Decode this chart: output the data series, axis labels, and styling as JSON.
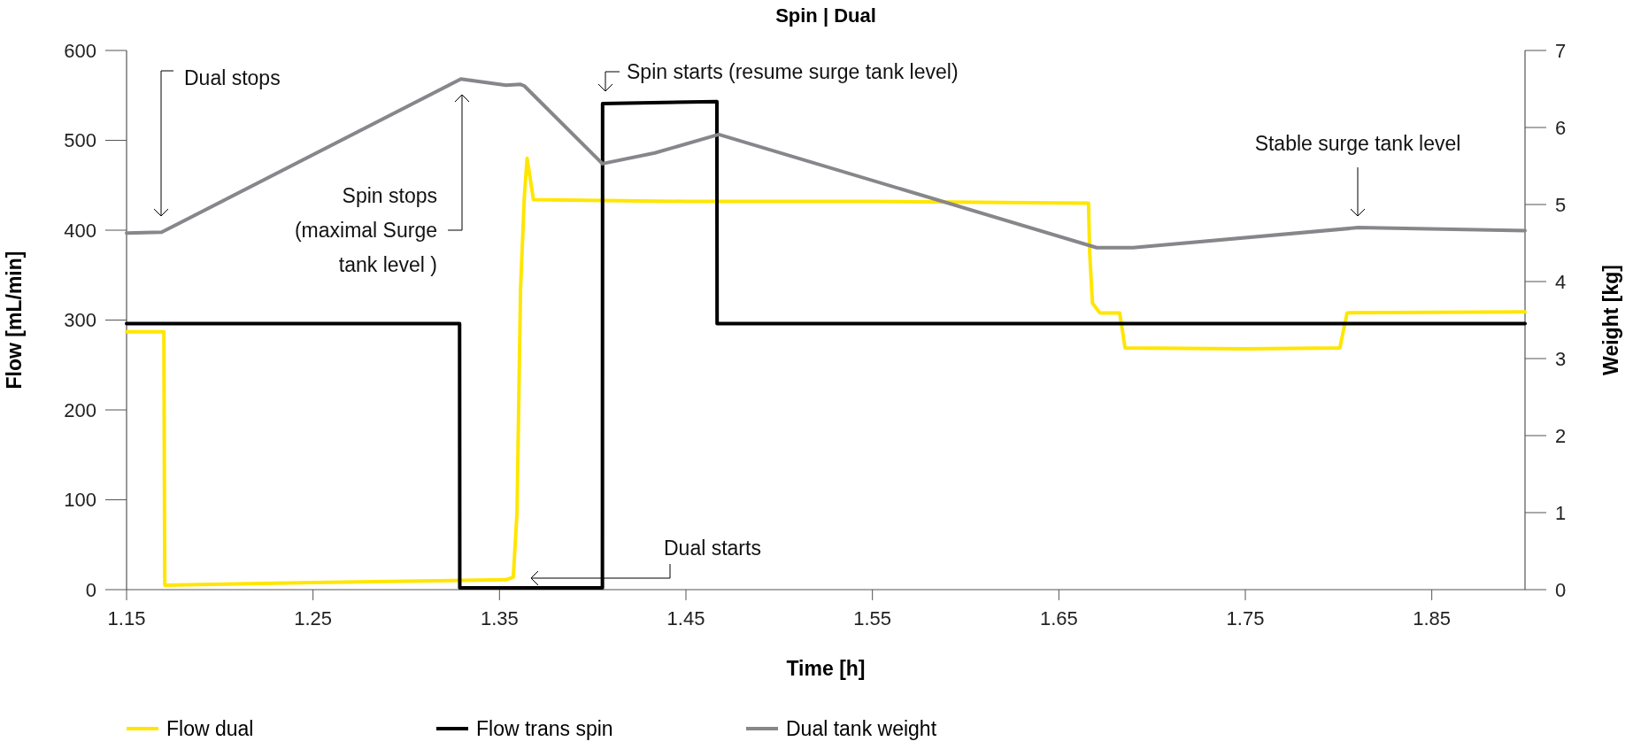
{
  "chart_data": {
    "type": "line",
    "title": "Spin | Dual",
    "xlabel": "Time [h]",
    "ylabel": "Flow [mL/min]",
    "y2label": "Weight [kg]",
    "xlim": [
      1.15,
      1.9
    ],
    "xticks": [
      1.15,
      1.25,
      1.35,
      1.45,
      1.55,
      1.65,
      1.75,
      1.85
    ],
    "ylim": [
      0,
      600
    ],
    "yticks": [
      0,
      100,
      200,
      300,
      400,
      500,
      600
    ],
    "y2lim": [
      0,
      7
    ],
    "y2ticks": [
      0,
      1,
      2,
      3,
      4,
      5,
      6,
      7
    ],
    "grid": false,
    "legend": "bottom",
    "line_style": "solid",
    "marker": "none",
    "series": [
      {
        "name": "Flow dual",
        "color": "#ffe600",
        "x": [
          1.15,
          1.17,
          1.1705,
          1.25,
          1.3535,
          1.3574,
          1.3594,
          1.3613,
          1.3633,
          1.3648,
          1.3682,
          1.45,
          1.55,
          1.6659,
          1.6665,
          1.668,
          1.6719,
          1.6826,
          1.6855,
          1.75,
          1.8007,
          1.8046,
          1.9
        ],
        "values": [
          287,
          287,
          5,
          8,
          11,
          14,
          86,
          335,
          436,
          480,
          434,
          432,
          432,
          430,
          376,
          319,
          308,
          308,
          269,
          268,
          269,
          308,
          309
        ]
      },
      {
        "name": "Flow trans spin",
        "color": "#000000",
        "x": [
          1.15,
          1.3286,
          1.3287,
          1.4052,
          1.4053,
          1.4666,
          1.4667,
          1.9
        ],
        "values": [
          296,
          296,
          2,
          2,
          541,
          543,
          296,
          296
        ]
      },
      {
        "name": "Dual tank weight",
        "color": "#87868a",
        "axis": "y2",
        "x": [
          1.15,
          1.1688,
          1.3293,
          1.3535,
          1.3613,
          1.3633,
          1.4052,
          1.4333,
          1.4676,
          1.6703,
          1.6897,
          1.8106,
          1.9
        ],
        "values": [
          4.63,
          4.64,
          6.63,
          6.55,
          6.56,
          6.54,
          5.53,
          5.67,
          5.91,
          4.44,
          4.44,
          4.7,
          4.66
        ]
      }
    ],
    "annotations": [
      "Dual stops",
      "Spin stops\n(maximal Surge\ntank level )",
      "Spin starts (resume surge tank level)",
      "Dual starts",
      "Stable surge tank level"
    ]
  }
}
